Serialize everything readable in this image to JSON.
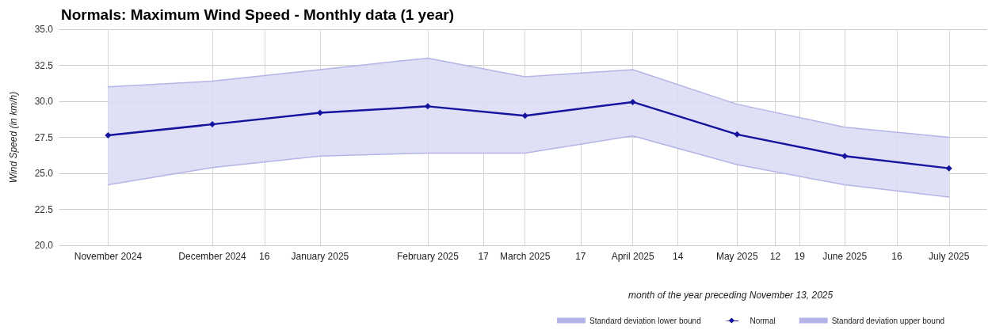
{
  "chart_data": {
    "type": "line",
    "title": "Normals: Maximum Wind Speed - Monthly data (1 year)",
    "xlabel": "month of the year preceding November 13, 2025",
    "ylabel": "Wind Speed (in km/h)",
    "x": [
      "2024-11-01",
      "2024-12-01",
      "2025-01-01",
      "2025-02-01",
      "2025-03-01",
      "2025-04-01",
      "2025-05-01",
      "2025-06-01",
      "2025-07-01"
    ],
    "series": [
      {
        "name": "Standard deviation lower bound",
        "color": "#b4b4e6",
        "marker": "none",
        "values": [
          24.2,
          25.4,
          26.2,
          26.4,
          26.4,
          27.6,
          25.6,
          24.2,
          23.35
        ]
      },
      {
        "name": "Normal",
        "color": "#14149e",
        "marker": "diamond",
        "values": [
          27.64,
          28.4,
          29.2,
          29.65,
          29.0,
          29.95,
          27.7,
          26.2,
          25.35
        ],
        "lower": [
          24.2,
          25.4,
          26.2,
          26.4,
          26.4,
          27.6,
          25.6,
          24.2,
          23.35
        ],
        "upper": [
          31.0,
          31.4,
          32.2,
          33.0,
          31.7,
          32.2,
          29.8,
          28.2,
          27.5
        ]
      },
      {
        "name": "Standard deviation upper bound",
        "color": "#b4b4e6",
        "marker": "none",
        "values": [
          31.0,
          31.4,
          32.2,
          33.0,
          31.7,
          32.2,
          29.8,
          28.2,
          27.5
        ]
      }
    ],
    "xlim": [
      "2024-10-18",
      "2025-07-12"
    ],
    "xticks": [
      {
        "value": "2024-11-01",
        "label": "November 2024"
      },
      {
        "value": "2024-12-01",
        "label": "December 2024"
      },
      {
        "value": "2024-12-16",
        "label": "16"
      },
      {
        "value": "2025-01-01",
        "label": "January 2025"
      },
      {
        "value": "2025-02-01",
        "label": "February 2025"
      },
      {
        "value": "2025-02-17",
        "label": "17"
      },
      {
        "value": "2025-03-01",
        "label": "March 2025"
      },
      {
        "value": "2025-03-17",
        "label": "17"
      },
      {
        "value": "2025-04-01",
        "label": "April 2025"
      },
      {
        "value": "2025-04-14",
        "label": "14"
      },
      {
        "value": "2025-05-01",
        "label": "May 2025"
      },
      {
        "value": "2025-05-12",
        "label": "12"
      },
      {
        "value": "2025-05-19",
        "label": "19"
      },
      {
        "value": "2025-06-01",
        "label": "June 2025"
      },
      {
        "value": "2025-06-16",
        "label": "16"
      },
      {
        "value": "2025-07-01",
        "label": "July 2025"
      }
    ],
    "ylim": [
      20,
      35
    ],
    "yticks": [
      {
        "value": 20,
        "label": "20.0"
      },
      {
        "value": 22.5,
        "label": "22.5"
      },
      {
        "value": 25,
        "label": "25.0"
      },
      {
        "value": 27.5,
        "label": "27.5"
      },
      {
        "value": 30,
        "label": "30.0"
      },
      {
        "value": 32.5,
        "label": "32.5"
      },
      {
        "value": 35,
        "label": "35.0"
      }
    ],
    "grid": true,
    "legend": "bottom right",
    "line_style": "solid"
  }
}
